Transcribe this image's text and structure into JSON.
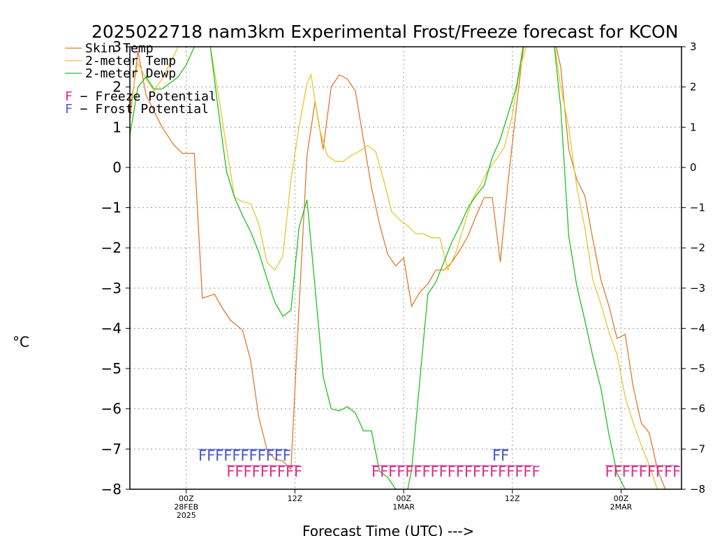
{
  "chart_data": {
    "type": "line",
    "title": "2025022718 nam3km Experimental Frost/Freeze forecast for KCON",
    "ylabel": "°C",
    "xlabel": "Forecast Time (UTC) --->",
    "ylim": [
      -8,
      3
    ],
    "xlim_hours": [
      -14,
      123
    ],
    "grid": true,
    "legend_position": "top-left",
    "y_ticks": [
      "3",
      "2",
      "1",
      "0",
      "−1",
      "−2",
      "−3",
      "−4",
      "−5",
      "−6",
      "−7",
      "−8"
    ],
    "y_tick_values": [
      3,
      2,
      1,
      0,
      -1,
      -2,
      -3,
      -4,
      -5,
      -6,
      -7,
      -8
    ],
    "x_ticks": [
      {
        "hour": 0,
        "line1": "00Z",
        "line2": "28FEB",
        "line3": "2025"
      },
      {
        "hour": 27,
        "line1": "12Z",
        "line2": "",
        "line3": ""
      },
      {
        "hour": 54,
        "line1": "00Z",
        "line2": "1MAR",
        "line3": ""
      },
      {
        "hour": 81,
        "line1": "12Z",
        "line2": "",
        "line3": ""
      },
      {
        "hour": 108,
        "line1": "00Z",
        "line2": "2MAR",
        "line3": ""
      }
    ],
    "series": [
      {
        "name": "Skin Temp",
        "color": "#e07a2e",
        "points": [
          [
            -14,
            1.2
          ],
          [
            -12,
            2.9
          ],
          [
            -10,
            1.8
          ],
          [
            -8,
            1.4
          ],
          [
            -6,
            1.0
          ],
          [
            -3,
            0.55
          ],
          [
            -1,
            0.35
          ],
          [
            2,
            0.35
          ],
          [
            4,
            -3.25
          ],
          [
            7,
            -3.15
          ],
          [
            9,
            -3.5
          ],
          [
            11,
            -3.8
          ],
          [
            14,
            -4.05
          ],
          [
            16,
            -4.8
          ],
          [
            18,
            -6.2
          ],
          [
            20,
            -7.0
          ],
          [
            22,
            -7.25
          ],
          [
            24,
            -7.3
          ],
          [
            26,
            -7.5
          ],
          [
            28,
            -3.5
          ],
          [
            30,
            0.3
          ],
          [
            32,
            1.65
          ],
          [
            34,
            0.45
          ],
          [
            36,
            2.0
          ],
          [
            38,
            2.3
          ],
          [
            40,
            2.2
          ],
          [
            42,
            1.9
          ],
          [
            44,
            0.7
          ],
          [
            46,
            -0.5
          ],
          [
            48,
            -1.4
          ],
          [
            50,
            -2.15
          ],
          [
            52,
            -2.45
          ],
          [
            54,
            -2.25
          ],
          [
            56,
            -3.45
          ],
          [
            58,
            -3.1
          ],
          [
            60,
            -2.9
          ],
          [
            62,
            -2.55
          ],
          [
            64,
            -2.55
          ],
          [
            66,
            -2.35
          ],
          [
            68,
            -2.05
          ],
          [
            70,
            -1.7
          ],
          [
            72,
            -1.2
          ],
          [
            74,
            -0.75
          ],
          [
            76,
            -0.75
          ],
          [
            78,
            -2.35
          ],
          [
            80,
            -0.3
          ],
          [
            82,
            1.5
          ],
          [
            84,
            3.2
          ],
          [
            91,
            3.4
          ],
          [
            93,
            2.5
          ],
          [
            95,
            0.45
          ],
          [
            97,
            -0.3
          ],
          [
            99,
            -0.7
          ],
          [
            101,
            -1.8
          ],
          [
            103,
            -2.8
          ],
          [
            105,
            -3.45
          ],
          [
            107,
            -4.25
          ],
          [
            109,
            -4.15
          ],
          [
            111,
            -5.45
          ],
          [
            113,
            -6.35
          ],
          [
            115,
            -6.6
          ],
          [
            117,
            -7.5
          ],
          [
            119,
            -8.0
          ]
        ]
      },
      {
        "name": "2-meter Temp",
        "color": "#e6c82e",
        "points": [
          [
            -14,
            1.5
          ],
          [
            -12,
            2.6
          ],
          [
            -10,
            2.2
          ],
          [
            -8,
            1.9
          ],
          [
            -6,
            2.2
          ],
          [
            -4,
            2.6
          ],
          [
            -2,
            3.0
          ],
          [
            6,
            3.0
          ],
          [
            8,
            1.8
          ],
          [
            10,
            0.5
          ],
          [
            12,
            -0.75
          ],
          [
            14,
            -0.85
          ],
          [
            16,
            -0.9
          ],
          [
            18,
            -1.4
          ],
          [
            20,
            -2.35
          ],
          [
            22,
            -2.55
          ],
          [
            24,
            -2.2
          ],
          [
            26,
            -0.3
          ],
          [
            28,
            1.0
          ],
          [
            30,
            2.1
          ],
          [
            31,
            2.3
          ],
          [
            33,
            1.0
          ],
          [
            35,
            0.3
          ],
          [
            37,
            0.15
          ],
          [
            39,
            0.15
          ],
          [
            41,
            0.3
          ],
          [
            43,
            0.4
          ],
          [
            45,
            0.55
          ],
          [
            47,
            0.4
          ],
          [
            49,
            -0.3
          ],
          [
            51,
            -1.1
          ],
          [
            53,
            -1.3
          ],
          [
            55,
            -1.45
          ],
          [
            57,
            -1.65
          ],
          [
            59,
            -1.65
          ],
          [
            61,
            -1.75
          ],
          [
            63,
            -1.75
          ],
          [
            65,
            -2.55
          ],
          [
            67,
            -2.1
          ],
          [
            69,
            -1.45
          ],
          [
            71,
            -0.8
          ],
          [
            73,
            -0.45
          ],
          [
            75,
            -0.05
          ],
          [
            77,
            0.2
          ],
          [
            79,
            0.5
          ],
          [
            81,
            1.3
          ],
          [
            83,
            2.5
          ],
          [
            85,
            3.2
          ],
          [
            91,
            3.4
          ],
          [
            93,
            2.0
          ],
          [
            95,
            1.0
          ],
          [
            97,
            -0.5
          ],
          [
            99,
            -1.5
          ],
          [
            101,
            -2.8
          ],
          [
            103,
            -3.4
          ],
          [
            105,
            -4.1
          ],
          [
            107,
            -4.65
          ],
          [
            109,
            -5.7
          ],
          [
            111,
            -6.35
          ],
          [
            113,
            -6.9
          ],
          [
            115,
            -7.4
          ],
          [
            117,
            -8.0
          ]
        ]
      },
      {
        "name": "2-meter Dewp",
        "color": "#1fc21f",
        "points": [
          [
            -14,
            0.8
          ],
          [
            -12,
            2.0
          ],
          [
            -10,
            2.25
          ],
          [
            -8,
            1.95
          ],
          [
            -6,
            1.95
          ],
          [
            -4,
            2.1
          ],
          [
            -2,
            2.25
          ],
          [
            0,
            2.55
          ],
          [
            2,
            3.0
          ],
          [
            6,
            3.0
          ],
          [
            8,
            1.4
          ],
          [
            10,
            -0.1
          ],
          [
            12,
            -0.75
          ],
          [
            14,
            -1.2
          ],
          [
            16,
            -1.6
          ],
          [
            18,
            -2.1
          ],
          [
            20,
            -2.75
          ],
          [
            22,
            -3.35
          ],
          [
            24,
            -3.7
          ],
          [
            26,
            -3.55
          ],
          [
            28,
            -1.5
          ],
          [
            30,
            -0.8
          ],
          [
            32,
            -3.0
          ],
          [
            34,
            -5.2
          ],
          [
            36,
            -6.0
          ],
          [
            38,
            -6.05
          ],
          [
            40,
            -5.95
          ],
          [
            42,
            -6.1
          ],
          [
            44,
            -6.55
          ],
          [
            46,
            -6.55
          ],
          [
            48,
            -7.55
          ],
          [
            50,
            -7.7
          ],
          [
            52,
            -8.0
          ],
          [
            55,
            -8.0
          ],
          [
            56,
            -7.5
          ],
          [
            58,
            -5.3
          ],
          [
            60,
            -3.15
          ],
          [
            62,
            -2.85
          ],
          [
            64,
            -2.35
          ],
          [
            66,
            -1.85
          ],
          [
            68,
            -1.45
          ],
          [
            70,
            -1.0
          ],
          [
            72,
            -0.7
          ],
          [
            74,
            -0.45
          ],
          [
            76,
            0.25
          ],
          [
            78,
            0.7
          ],
          [
            80,
            1.35
          ],
          [
            82,
            2.0
          ],
          [
            84,
            3.2
          ],
          [
            91,
            3.4
          ],
          [
            93,
            1.5
          ],
          [
            95,
            -1.7
          ],
          [
            97,
            -2.95
          ],
          [
            99,
            -3.8
          ],
          [
            101,
            -4.7
          ],
          [
            103,
            -5.5
          ],
          [
            105,
            -6.65
          ],
          [
            107,
            -7.6
          ],
          [
            109,
            -8.0
          ]
        ]
      }
    ],
    "legend": [
      {
        "label": "Skin Temp",
        "color": "#e07a2e"
      },
      {
        "label": "2-meter Temp",
        "color": "#e6c82e"
      },
      {
        "label": "2-meter Dewp",
        "color": "#1fc21f"
      }
    ],
    "potential_legend": [
      {
        "letter": "F",
        "text": " − Freeze Potential",
        "color": "#d6308c"
      },
      {
        "letter": "F",
        "text": " − Frost Potential",
        "color": "#4a5ad0"
      }
    ],
    "frost_runs": [
      {
        "text": "FFFFFFFFFFF",
        "start_hour": 3
      },
      {
        "text": "FF",
        "start_hour": 76
      }
    ],
    "freeze_runs": [
      {
        "text": "FFFFFFFFF",
        "start_hour": 10
      },
      {
        "text": "FFFFFFFFFFFFFFFFFFFF",
        "start_hour": 46
      },
      {
        "text": "FFFFFFFFF",
        "start_hour": 104
      }
    ],
    "colors": {
      "axis": "#000000",
      "grid": "#9a9a9a",
      "frost": "#4a5ad0",
      "freeze": "#d6308c"
    }
  }
}
